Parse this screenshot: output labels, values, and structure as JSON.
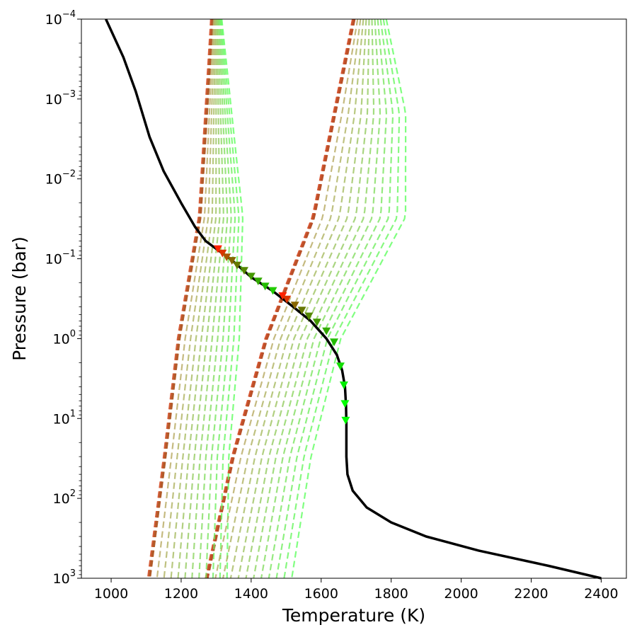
{
  "chart_data": {
    "type": "line",
    "xlabel": "Temperature (K)",
    "ylabel": "Pressure (bar)",
    "xlim": [
      915,
      2472
    ],
    "ylim": [
      1000,
      0.0001
    ],
    "y_scale": "log",
    "y_inverted": true,
    "grid": false,
    "legend": "none",
    "x_ticks": [
      1000,
      1200,
      1400,
      1600,
      1800,
      2000,
      2200,
      2400
    ],
    "x_tick_labels": [
      "1000",
      "1200",
      "1400",
      "1600",
      "1800",
      "2000",
      "2200",
      "2400"
    ],
    "y_ticks": [
      {
        "value": 0.0001,
        "base": "10",
        "exp": "−4"
      },
      {
        "value": 0.001,
        "base": "10",
        "exp": "−3"
      },
      {
        "value": 0.01,
        "base": "10",
        "exp": "−2"
      },
      {
        "value": 0.1,
        "base": "10",
        "exp": "−1"
      },
      {
        "value": 1,
        "base": "10",
        "exp": "0"
      },
      {
        "value": 10,
        "base": "10",
        "exp": "1"
      },
      {
        "value": 100,
        "base": "10",
        "exp": "2"
      },
      {
        "value": 1000,
        "base": "10",
        "exp": "3"
      }
    ],
    "main_profile": {
      "color": "#000000",
      "points": [
        [
          985,
          0.0001
        ],
        [
          1035,
          0.0003
        ],
        [
          1070,
          0.0008
        ],
        [
          1110,
          0.003
        ],
        [
          1150,
          0.008
        ],
        [
          1200,
          0.02
        ],
        [
          1240,
          0.04
        ],
        [
          1270,
          0.06
        ],
        [
          1300,
          0.075
        ],
        [
          1340,
          0.1
        ],
        [
          1400,
          0.17
        ],
        [
          1460,
          0.25
        ],
        [
          1520,
          0.4
        ],
        [
          1570,
          0.6
        ],
        [
          1615,
          1.0
        ],
        [
          1645,
          1.6
        ],
        [
          1660,
          2.5
        ],
        [
          1668,
          4.0
        ],
        [
          1671,
          7.0
        ],
        [
          1672,
          12
        ],
        [
          1672,
          30
        ],
        [
          1675,
          50
        ],
        [
          1690,
          80
        ],
        [
          1730,
          130
        ],
        [
          1800,
          200
        ],
        [
          1900,
          300
        ],
        [
          2050,
          450
        ],
        [
          2250,
          700
        ],
        [
          2400,
          1000
        ]
      ]
    },
    "markers": [
      {
        "t": 1305,
        "p": 0.075,
        "color": "#ff2200"
      },
      {
        "t": 1318,
        "p": 0.085,
        "color": "#dd3300"
      },
      {
        "t": 1330,
        "p": 0.095,
        "color": "#aa5500"
      },
      {
        "t": 1345,
        "p": 0.105,
        "color": "#886600"
      },
      {
        "t": 1360,
        "p": 0.12,
        "color": "#667700"
      },
      {
        "t": 1380,
        "p": 0.14,
        "color": "#558800"
      },
      {
        "t": 1400,
        "p": 0.165,
        "color": "#449900"
      },
      {
        "t": 1420,
        "p": 0.19,
        "color": "#33aa00"
      },
      {
        "t": 1440,
        "p": 0.22,
        "color": "#22bb00"
      },
      {
        "t": 1462,
        "p": 0.25,
        "color": "#22cc00"
      },
      {
        "t": 1490,
        "p": 0.29,
        "color": "#ff2200"
      },
      {
        "t": 1502,
        "p": 0.32,
        "color": "#dd3300"
      },
      {
        "t": 1525,
        "p": 0.38,
        "color": "#886600"
      },
      {
        "t": 1545,
        "p": 0.44,
        "color": "#667700"
      },
      {
        "t": 1565,
        "p": 0.52,
        "color": "#558800"
      },
      {
        "t": 1588,
        "p": 0.62,
        "color": "#449900"
      },
      {
        "t": 1615,
        "p": 0.8,
        "color": "#33aa00"
      },
      {
        "t": 1637,
        "p": 1.1,
        "color": "#22bb00"
      },
      {
        "t": 1655,
        "p": 2.2,
        "color": "#11dd00"
      },
      {
        "t": 1665,
        "p": 3.8,
        "color": "#00ee00"
      },
      {
        "t": 1668,
        "p": 6.5,
        "color": "#00ff00"
      },
      {
        "t": 1670,
        "p": 10.5,
        "color": "#00ff00"
      }
    ],
    "dashed_families": [
      {
        "count": 12,
        "spread": 6,
        "color_start": "#e06040",
        "color_end": "#b05a28",
        "anchors": [
          [
            1285,
            0.0001
          ],
          [
            1250,
            0.03
          ],
          [
            1190,
            1
          ],
          [
            1150,
            30
          ],
          [
            1105,
            1000
          ]
        ]
      },
      {
        "count": 12,
        "spread": 6,
        "color_start": "#e05a38",
        "color_end": "#b85028",
        "anchors": [
          [
            1690,
            0.0001
          ],
          [
            1575,
            0.03
          ],
          [
            1440,
            1
          ],
          [
            1345,
            30
          ],
          [
            1270,
            1000
          ]
        ]
      },
      {
        "count": 22,
        "spread": 11,
        "color_start": "#c0a060",
        "color_end": "#60ff60",
        "fans": [
          {
            "dt": [
              [
                0.0001,
                25
              ],
              [
                0.0015,
                70
              ],
              [
                0.03,
                120
              ],
              [
                1,
                170
              ],
              [
                30,
                180
              ],
              [
                1000,
                220
              ]
            ]
          },
          {
            "dt": [
              [
                0.0001,
                90
              ],
              [
                0.0015,
                200
              ],
              [
                0.03,
                260
              ],
              [
                1,
                210
              ],
              [
                30,
                220
              ],
              [
                1000,
                240
              ]
            ]
          }
        ]
      }
    ]
  }
}
